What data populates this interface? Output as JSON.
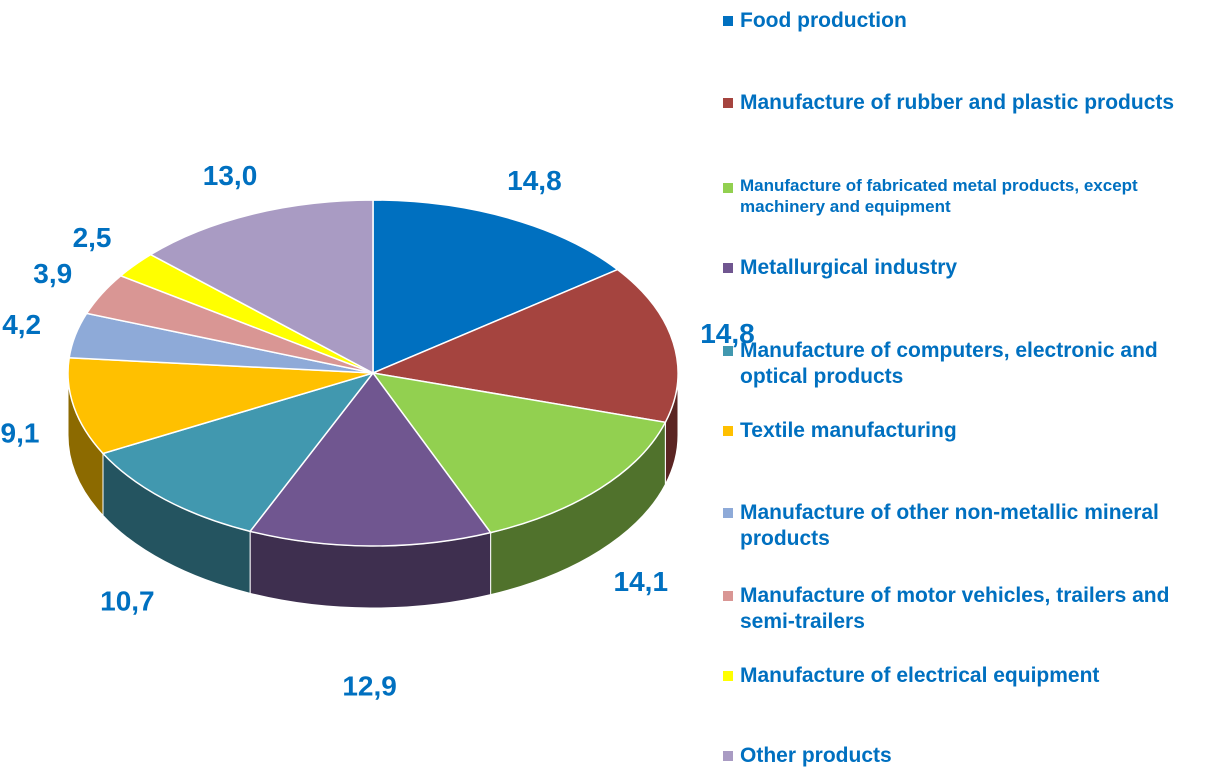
{
  "chart_data": {
    "type": "pie",
    "categories": [
      "Food production",
      "Manufacture of rubber and plastic products",
      "Manufacture of fabricated metal products, except machinery and equipment",
      "Metallurgical industry",
      "Manufacture of computers, electronic and optical products",
      "Textile manufacturing",
      "Manufacture of other non-metallic mineral products",
      "Manufacture of motor vehicles, trailers and semi-trailers",
      "Manufacture of electrical equipment",
      "Other products"
    ],
    "values": [
      14.8,
      14.8,
      14.1,
      12.9,
      10.7,
      9.1,
      4.2,
      3.9,
      2.5,
      13.0
    ],
    "value_labels": [
      "14,8",
      "14,8",
      "14,1",
      "12,9",
      "10,7",
      "9,1",
      "4,2",
      "3,9",
      "2,5",
      "13,0"
    ],
    "colors": [
      "#0070c0",
      "#a5443f",
      "#92d050",
      "#705690",
      "#4198af",
      "#ffc000",
      "#8eaad8",
      "#d99694",
      "#ffff00",
      "#a99bc3"
    ],
    "legend": "right"
  }
}
